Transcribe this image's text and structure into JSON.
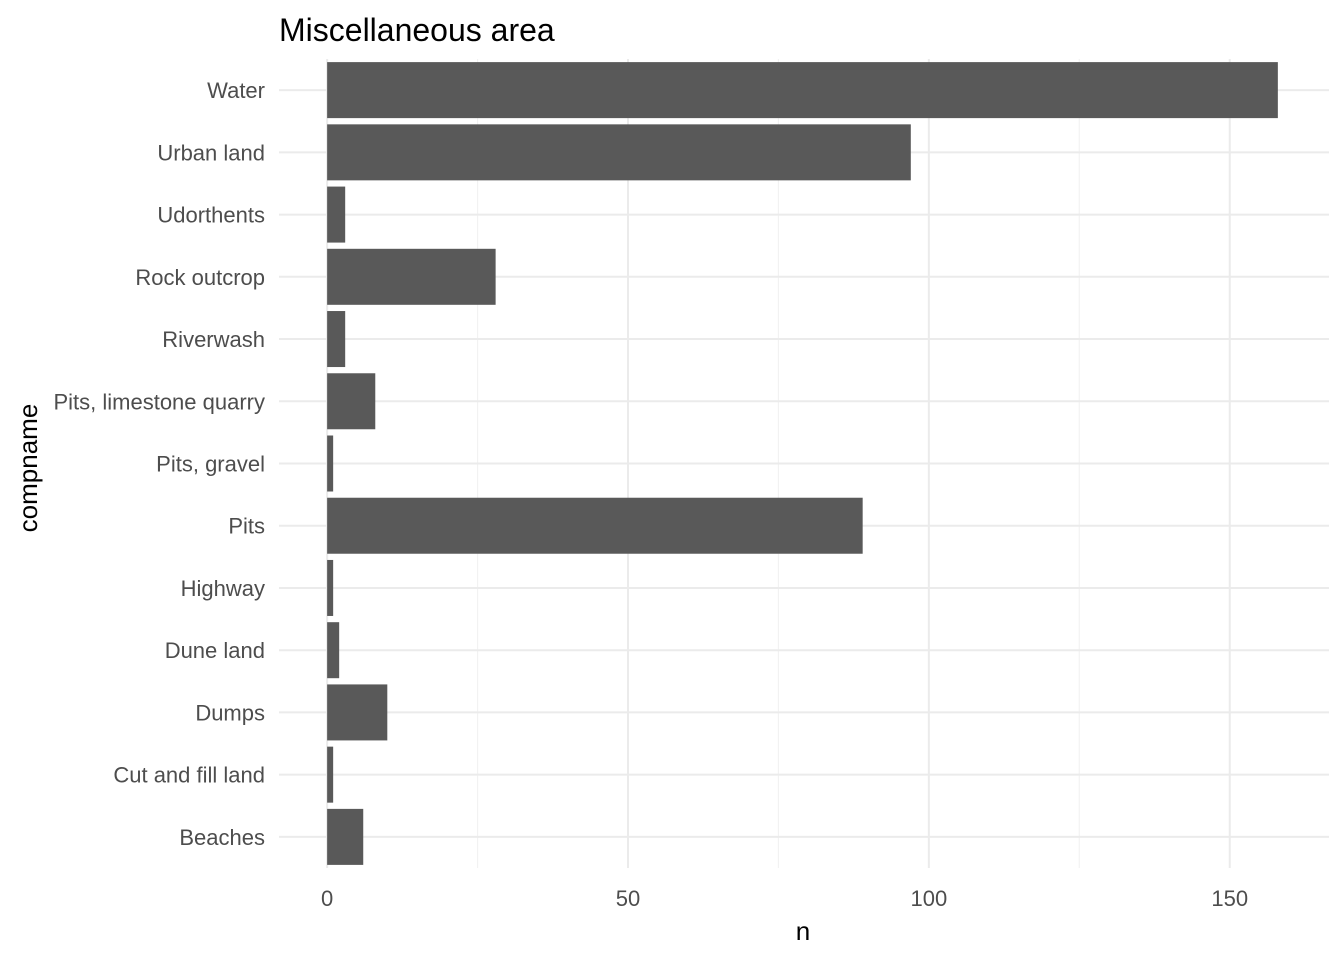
{
  "chart_data": {
    "type": "bar",
    "orientation": "horizontal",
    "title": "Miscellaneous area",
    "xlabel": "n",
    "ylabel": "compname",
    "categories": [
      "Beaches",
      "Cut and fill land",
      "Dumps",
      "Dune land",
      "Highway",
      "Pits",
      "Pits, gravel",
      "Pits, limestone quarry",
      "Riverwash",
      "Rock outcrop",
      "Udorthents",
      "Urban land",
      "Water"
    ],
    "values": [
      6,
      1,
      10,
      2,
      1,
      89,
      1,
      8,
      3,
      28,
      3,
      97,
      158
    ],
    "xlim": [
      -8,
      166.5
    ],
    "xticks": [
      0,
      50,
      100,
      150
    ],
    "xtick_labels": [
      "0",
      "50",
      "100",
      "150"
    ],
    "grid": true,
    "legend": "none",
    "bar_color": "#595959"
  }
}
